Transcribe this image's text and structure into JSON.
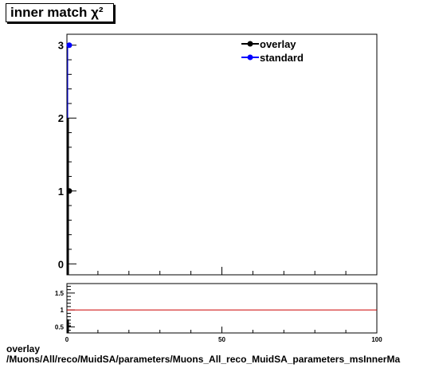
{
  "title": "inner match χ²",
  "footer": {
    "line1": "overlay",
    "line2": "/Muons/All/reco/MuidSA/parameters/Muons_All_reco_MuidSA_parameters_msInnerMa"
  },
  "chart_data": [
    {
      "type": "line",
      "title": "inner match χ²",
      "xlim": [
        0,
        100
      ],
      "ylim": [
        -0.15,
        3.15
      ],
      "y_ticks": [
        0,
        1,
        2,
        3
      ],
      "x_tick_labels": [],
      "legend_position": "top-right",
      "series": [
        {
          "name": "overlay",
          "color": "#000000",
          "x": [
            0.5
          ],
          "y": [
            1
          ]
        },
        {
          "name": "standard",
          "color": "#0000ff",
          "x": [
            0.5
          ],
          "y": [
            3
          ]
        }
      ]
    },
    {
      "type": "line",
      "xlim": [
        0,
        100
      ],
      "ylim": [
        0.32,
        1.78
      ],
      "y_ticks": [
        "0.5",
        "1",
        "1.5"
      ],
      "x_ticks": [
        "0",
        "50",
        "100"
      ],
      "reference_line": {
        "y": 1,
        "color": "#cc0000"
      }
    }
  ]
}
